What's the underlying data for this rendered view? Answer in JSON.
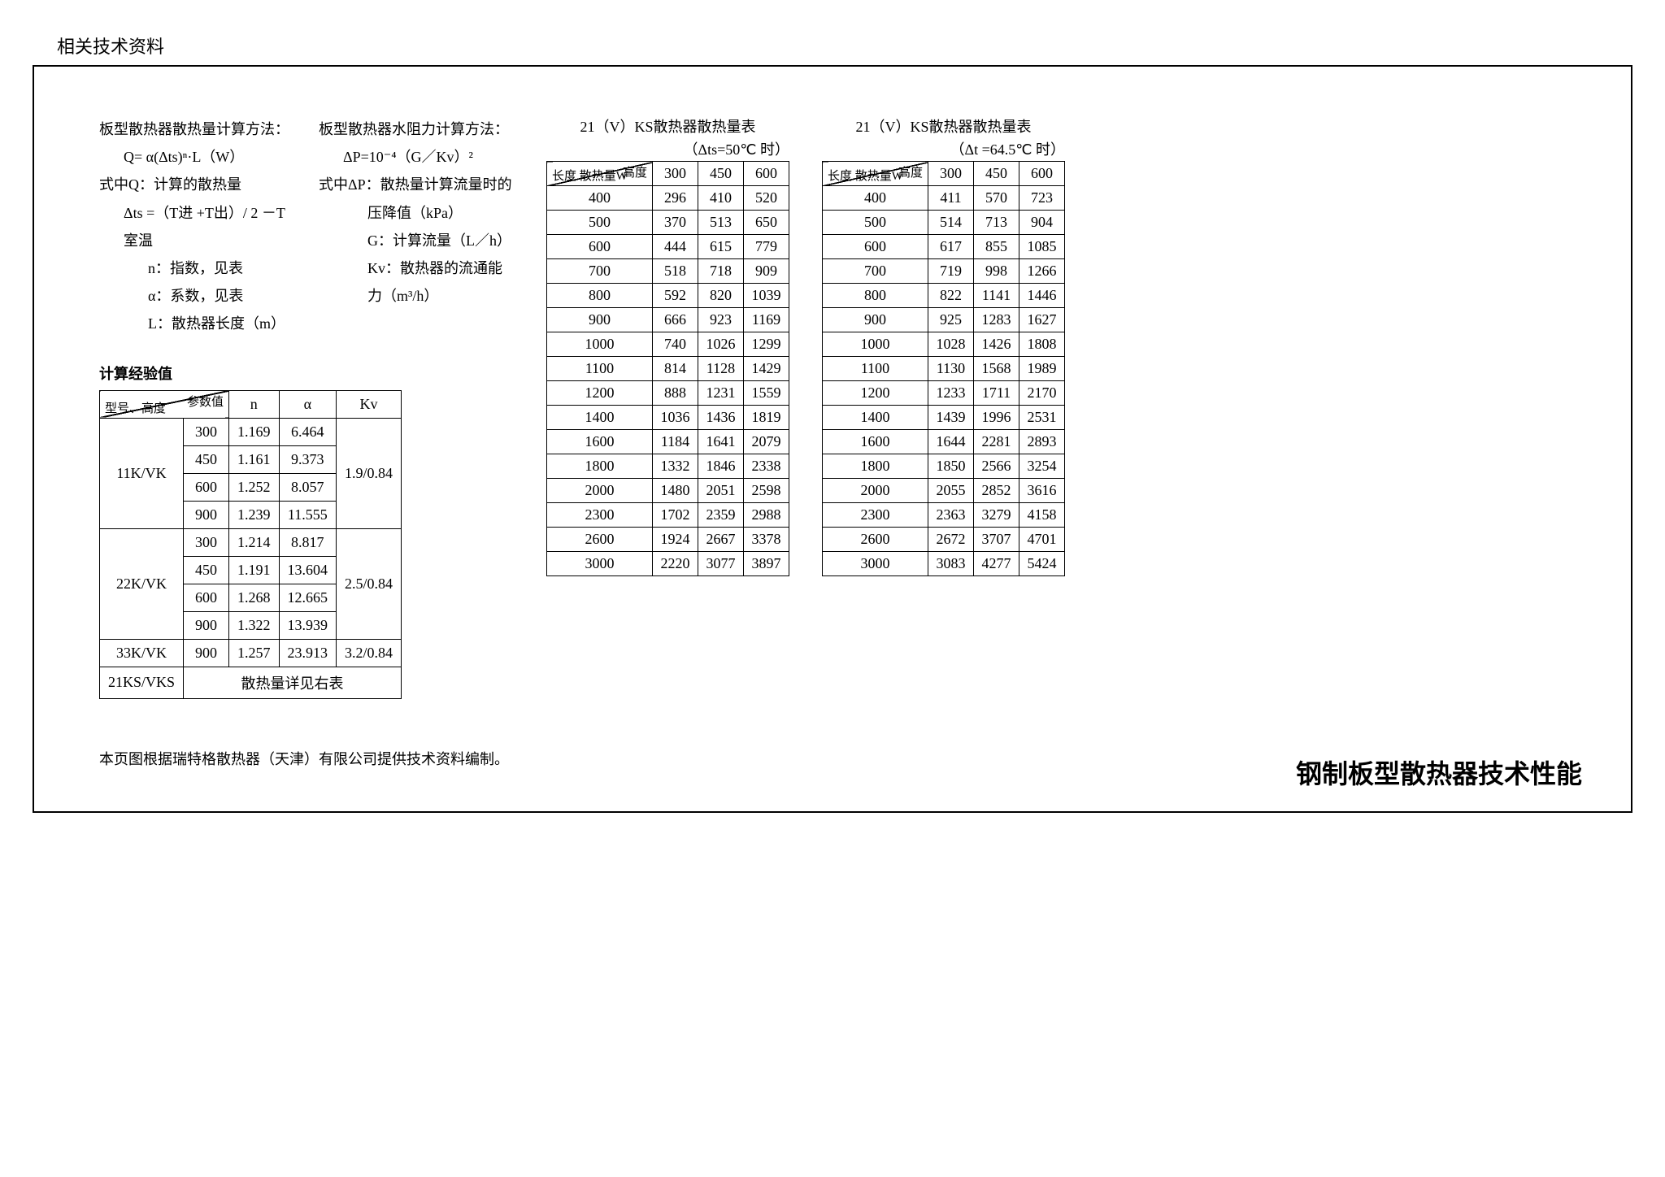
{
  "page_header": "相关技术资料",
  "bottom_title": "钢制板型散热器技术性能",
  "formula_q": {
    "title": "板型散热器散热量计算方法：",
    "eq": "Q= α(Δts)ⁿ·L（W）",
    "l1": "式中Q：计算的散热量",
    "l2": "Δts =（T进 +T出）/ 2 －T室温",
    "l3": "n：指数，见表",
    "l4": "α：系数，见表",
    "l5": "L：散热器长度（m）"
  },
  "formula_p": {
    "title": "板型散热器水阻力计算方法：",
    "eq": "ΔP=10⁻⁴（G／Kv）²",
    "l1": "式中ΔP：散热量计算流量时的",
    "l2": "压降值（kPa）",
    "l3": "G：计算流量（L／h）",
    "l4": "Kv：散热器的流通能力（m³/h）"
  },
  "exp_title": "计算经验值",
  "exp_table": {
    "header_diag_tr": "参数值",
    "header_diag_bl": "型号、高度",
    "cols": [
      "n",
      "α",
      "Kv"
    ],
    "groups": [
      {
        "model": "11K/VK",
        "kv": "1.9/0.84",
        "rows": [
          {
            "h": "300",
            "n": "1.169",
            "a": "6.464"
          },
          {
            "h": "450",
            "n": "1.161",
            "a": "9.373"
          },
          {
            "h": "600",
            "n": "1.252",
            "a": "8.057"
          },
          {
            "h": "900",
            "n": "1.239",
            "a": "11.555"
          }
        ]
      },
      {
        "model": "22K/VK",
        "kv": "2.5/0.84",
        "rows": [
          {
            "h": "300",
            "n": "1.214",
            "a": "8.817"
          },
          {
            "h": "450",
            "n": "1.191",
            "a": "13.604"
          },
          {
            "h": "600",
            "n": "1.268",
            "a": "12.665"
          },
          {
            "h": "900",
            "n": "1.322",
            "a": "13.939"
          }
        ]
      },
      {
        "model": "33K/VK",
        "kv": "3.2/0.84",
        "rows": [
          {
            "h": "900",
            "n": "1.257",
            "a": "23.913"
          }
        ]
      }
    ],
    "last_model": "21KS/VKS",
    "last_text": "散热量详见右表"
  },
  "heat_tables": {
    "header_diag_tr": "高度",
    "header_diag_bl": "长度",
    "header_unit": "散热量W",
    "cols": [
      "300",
      "450",
      "600"
    ],
    "t1": {
      "title": "21（V）KS散热器散热量表",
      "cond": "（Δts=50℃ 时）",
      "rows": [
        [
          "400",
          "296",
          "410",
          "520"
        ],
        [
          "500",
          "370",
          "513",
          "650"
        ],
        [
          "600",
          "444",
          "615",
          "779"
        ],
        [
          "700",
          "518",
          "718",
          "909"
        ],
        [
          "800",
          "592",
          "820",
          "1039"
        ],
        [
          "900",
          "666",
          "923",
          "1169"
        ],
        [
          "1000",
          "740",
          "1026",
          "1299"
        ],
        [
          "1100",
          "814",
          "1128",
          "1429"
        ],
        [
          "1200",
          "888",
          "1231",
          "1559"
        ],
        [
          "1400",
          "1036",
          "1436",
          "1819"
        ],
        [
          "1600",
          "1184",
          "1641",
          "2079"
        ],
        [
          "1800",
          "1332",
          "1846",
          "2338"
        ],
        [
          "2000",
          "1480",
          "2051",
          "2598"
        ],
        [
          "2300",
          "1702",
          "2359",
          "2988"
        ],
        [
          "2600",
          "1924",
          "2667",
          "3378"
        ],
        [
          "3000",
          "2220",
          "3077",
          "3897"
        ]
      ]
    },
    "t2": {
      "title": "21（V）KS散热器散热量表",
      "cond": "（Δt =64.5℃ 时）",
      "rows": [
        [
          "400",
          "411",
          "570",
          "723"
        ],
        [
          "500",
          "514",
          "713",
          "904"
        ],
        [
          "600",
          "617",
          "855",
          "1085"
        ],
        [
          "700",
          "719",
          "998",
          "1266"
        ],
        [
          "800",
          "822",
          "1141",
          "1446"
        ],
        [
          "900",
          "925",
          "1283",
          "1627"
        ],
        [
          "1000",
          "1028",
          "1426",
          "1808"
        ],
        [
          "1100",
          "1130",
          "1568",
          "1989"
        ],
        [
          "1200",
          "1233",
          "1711",
          "2170"
        ],
        [
          "1400",
          "1439",
          "1996",
          "2531"
        ],
        [
          "1600",
          "1644",
          "2281",
          "2893"
        ],
        [
          "1800",
          "1850",
          "2566",
          "3254"
        ],
        [
          "2000",
          "2055",
          "2852",
          "3616"
        ],
        [
          "2300",
          "2363",
          "3279",
          "4158"
        ],
        [
          "2600",
          "2672",
          "3707",
          "4701"
        ],
        [
          "3000",
          "3083",
          "4277",
          "5424"
        ]
      ]
    }
  },
  "footnote": "本页图根据瑞特格散热器（天津）有限公司提供技术资料编制。"
}
